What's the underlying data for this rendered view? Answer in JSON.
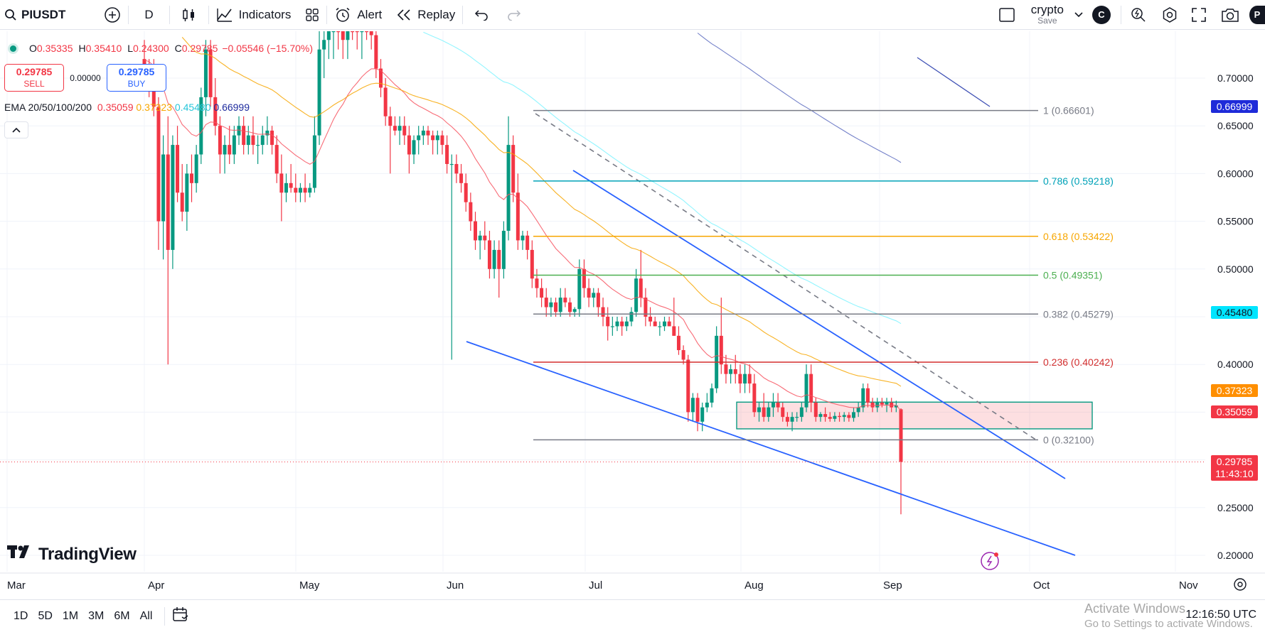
{
  "toolbar": {
    "symbol": "PIUSDT",
    "interval": "D",
    "indicators_label": "Indicators",
    "alert_label": "Alert",
    "replay_label": "Replay",
    "layout_name": "crypto",
    "layout_save": "Save",
    "account_initial": "C",
    "profile_initial": "P"
  },
  "legend": {
    "o_label": "O",
    "o_value": "0.35335",
    "h_label": "H",
    "h_value": "0.35410",
    "l_label": "L",
    "l_value": "0.24300",
    "c_label": "C",
    "c_value": "0.29785",
    "change": "−0.05546 (−15.70%)"
  },
  "trade": {
    "sell_price": "0.29785",
    "sell_label": "SELL",
    "spread": "0.00000",
    "buy_price": "0.29785",
    "buy_label": "BUY"
  },
  "ema": {
    "label": "EMA 20/50/100/200",
    "v20": "0.35059",
    "v50": "0.37323",
    "v100": "0.45480",
    "v200": "0.66999",
    "c20": "#f23645",
    "c50": "#f7a600",
    "c100": "#4dd0e1",
    "c200": "#1e2b9e"
  },
  "fib": [
    {
      "label": "1 (0.66601)",
      "price": 0.66601,
      "color": "#787b86"
    },
    {
      "label": "0.786 (0.59218)",
      "price": 0.59218,
      "color": "#00a2b8"
    },
    {
      "label": "0.618 (0.53422)",
      "price": 0.53422,
      "color": "#f7a600"
    },
    {
      "label": "0.5 (0.49351)",
      "price": 0.49351,
      "color": "#4caf50"
    },
    {
      "label": "0.382 (0.45279)",
      "price": 0.45279,
      "color": "#787b86"
    },
    {
      "label": "0.236 (0.40242)",
      "price": 0.40242,
      "color": "#d32f2f"
    },
    {
      "label": "0 (0.32100)",
      "price": 0.321,
      "color": "#787b86"
    }
  ],
  "price_axis": [
    "0.70000",
    "0.65000",
    "0.60000",
    "0.55000",
    "0.50000",
    "0.40000",
    "0.25000",
    "0.20000"
  ],
  "price_tags": {
    "ema200": "0.66999",
    "ema100": "0.45480",
    "ema50": "0.37323",
    "ema20": "0.35059",
    "last": "0.29785",
    "countdown": "11:43:10"
  },
  "time_axis": [
    "Mar",
    "Apr",
    "May",
    "Jun",
    "Jul",
    "Aug",
    "Sep",
    "Oct",
    "Nov"
  ],
  "logo_text": "TradingView",
  "ranges": [
    "1D",
    "5D",
    "1M",
    "3M",
    "6M",
    "All"
  ],
  "clock": "12:16:50 UTC",
  "watermark": {
    "line1": "Activate Windows",
    "line2": "Go to Settings to activate Windows."
  },
  "chart_data": {
    "type": "candlestick",
    "symbol": "PIUSDT",
    "interval": "D",
    "y_range": [
      0.18,
      0.735
    ],
    "candles_start": "2025-04-01",
    "candles": [
      [
        0.72,
        0.74,
        0.69,
        0.71
      ],
      [
        0.71,
        0.72,
        0.68,
        0.7
      ],
      [
        0.7,
        0.72,
        0.66,
        0.67
      ],
      [
        0.67,
        0.68,
        0.52,
        0.55
      ],
      [
        0.55,
        0.64,
        0.51,
        0.62
      ],
      [
        0.62,
        0.66,
        0.4,
        0.52
      ],
      [
        0.52,
        0.64,
        0.5,
        0.63
      ],
      [
        0.63,
        0.65,
        0.57,
        0.58
      ],
      [
        0.58,
        0.61,
        0.55,
        0.56
      ],
      [
        0.56,
        0.61,
        0.54,
        0.6
      ],
      [
        0.6,
        0.62,
        0.57,
        0.59
      ],
      [
        0.59,
        0.63,
        0.58,
        0.62
      ],
      [
        0.62,
        0.69,
        0.61,
        0.68
      ],
      [
        0.68,
        0.74,
        0.66,
        0.73
      ],
      [
        0.73,
        0.74,
        0.67,
        0.68
      ],
      [
        0.68,
        0.7,
        0.64,
        0.65
      ],
      [
        0.65,
        0.66,
        0.6,
        0.62
      ],
      [
        0.62,
        0.64,
        0.6,
        0.63
      ],
      [
        0.63,
        0.65,
        0.61,
        0.62
      ],
      [
        0.62,
        0.65,
        0.61,
        0.64
      ],
      [
        0.64,
        0.66,
        0.63,
        0.65
      ],
      [
        0.65,
        0.66,
        0.62,
        0.63
      ],
      [
        0.63,
        0.65,
        0.62,
        0.64
      ],
      [
        0.64,
        0.66,
        0.62,
        0.63
      ],
      [
        0.63,
        0.64,
        0.61,
        0.63
      ],
      [
        0.63,
        0.65,
        0.62,
        0.64
      ],
      [
        0.64,
        0.66,
        0.63,
        0.645
      ],
      [
        0.645,
        0.65,
        0.62,
        0.63
      ],
      [
        0.63,
        0.64,
        0.59,
        0.6
      ],
      [
        0.6,
        0.62,
        0.55,
        0.58
      ],
      [
        0.58,
        0.6,
        0.57,
        0.59
      ],
      [
        0.59,
        0.61,
        0.58,
        0.585
      ],
      [
        0.585,
        0.6,
        0.57,
        0.58
      ],
      [
        0.58,
        0.59,
        0.57,
        0.585
      ],
      [
        0.585,
        0.6,
        0.57,
        0.58
      ],
      [
        0.58,
        0.59,
        0.575,
        0.585
      ],
      [
        0.585,
        0.66,
        0.58,
        0.64
      ],
      [
        0.64,
        0.75,
        0.63,
        0.73
      ],
      [
        0.73,
        0.76,
        0.7,
        0.74
      ],
      [
        0.74,
        0.78,
        0.72,
        0.75
      ],
      [
        0.75,
        0.78,
        0.72,
        0.76
      ],
      [
        0.76,
        0.79,
        0.73,
        0.75
      ],
      [
        0.75,
        0.77,
        0.72,
        0.74
      ],
      [
        0.74,
        0.78,
        0.72,
        0.77
      ],
      [
        0.77,
        0.79,
        0.74,
        0.76
      ],
      [
        0.76,
        0.78,
        0.73,
        0.75
      ],
      [
        0.75,
        0.77,
        0.72,
        0.76
      ],
      [
        0.76,
        0.78,
        0.74,
        0.75
      ],
      [
        0.75,
        0.76,
        0.73,
        0.745
      ],
      [
        0.745,
        0.75,
        0.7,
        0.71
      ],
      [
        0.71,
        0.72,
        0.68,
        0.69
      ],
      [
        0.69,
        0.7,
        0.65,
        0.66
      ],
      [
        0.66,
        0.67,
        0.6,
        0.65
      ],
      [
        0.65,
        0.66,
        0.64,
        0.645
      ],
      [
        0.645,
        0.66,
        0.63,
        0.65
      ],
      [
        0.65,
        0.66,
        0.63,
        0.64
      ],
      [
        0.64,
        0.65,
        0.6,
        0.62
      ],
      [
        0.62,
        0.64,
        0.61,
        0.635
      ],
      [
        0.635,
        0.65,
        0.62,
        0.64
      ],
      [
        0.64,
        0.65,
        0.63,
        0.645
      ],
      [
        0.645,
        0.65,
        0.63,
        0.64
      ],
      [
        0.64,
        0.645,
        0.62,
        0.635
      ],
      [
        0.635,
        0.645,
        0.62,
        0.64
      ],
      [
        0.64,
        0.645,
        0.62,
        0.63
      ],
      [
        0.63,
        0.64,
        0.6,
        0.61
      ],
      [
        0.61,
        0.62,
        0.405,
        0.61
      ],
      [
        0.61,
        0.62,
        0.59,
        0.6
      ],
      [
        0.6,
        0.61,
        0.58,
        0.59
      ],
      [
        0.59,
        0.6,
        0.56,
        0.57
      ],
      [
        0.57,
        0.58,
        0.54,
        0.55
      ],
      [
        0.55,
        0.56,
        0.52,
        0.53
      ],
      [
        0.53,
        0.54,
        0.51,
        0.535
      ],
      [
        0.535,
        0.55,
        0.52,
        0.53
      ],
      [
        0.53,
        0.54,
        0.49,
        0.5
      ],
      [
        0.5,
        0.53,
        0.49,
        0.52
      ],
      [
        0.52,
        0.53,
        0.47,
        0.5
      ],
      [
        0.5,
        0.55,
        0.49,
        0.54
      ],
      [
        0.54,
        0.66,
        0.53,
        0.63
      ],
      [
        0.63,
        0.64,
        0.57,
        0.58
      ],
      [
        0.58,
        0.6,
        0.52,
        0.53
      ],
      [
        0.53,
        0.54,
        0.52,
        0.535
      ],
      [
        0.535,
        0.54,
        0.51,
        0.52
      ],
      [
        0.52,
        0.53,
        0.48,
        0.49
      ],
      [
        0.49,
        0.5,
        0.47,
        0.48
      ],
      [
        0.48,
        0.49,
        0.46,
        0.47
      ],
      [
        0.47,
        0.48,
        0.45,
        0.46
      ],
      [
        0.46,
        0.47,
        0.45,
        0.465
      ],
      [
        0.465,
        0.47,
        0.45,
        0.455
      ],
      [
        0.455,
        0.48,
        0.45,
        0.47
      ],
      [
        0.47,
        0.48,
        0.46,
        0.465
      ],
      [
        0.465,
        0.47,
        0.45,
        0.455
      ],
      [
        0.455,
        0.46,
        0.45,
        0.458
      ],
      [
        0.458,
        0.51,
        0.45,
        0.5
      ],
      [
        0.5,
        0.51,
        0.47,
        0.48
      ],
      [
        0.48,
        0.49,
        0.46,
        0.47
      ],
      [
        0.47,
        0.48,
        0.46,
        0.475
      ],
      [
        0.475,
        0.48,
        0.45,
        0.46
      ],
      [
        0.46,
        0.47,
        0.44,
        0.45
      ],
      [
        0.45,
        0.46,
        0.425,
        0.44
      ],
      [
        0.44,
        0.45,
        0.43,
        0.44
      ],
      [
        0.44,
        0.45,
        0.435,
        0.445
      ],
      [
        0.445,
        0.45,
        0.43,
        0.44
      ],
      [
        0.44,
        0.45,
        0.435,
        0.445
      ],
      [
        0.445,
        0.46,
        0.44,
        0.455
      ],
      [
        0.455,
        0.5,
        0.45,
        0.49
      ],
      [
        0.49,
        0.52,
        0.46,
        0.47
      ],
      [
        0.47,
        0.48,
        0.44,
        0.45
      ],
      [
        0.45,
        0.46,
        0.44,
        0.445
      ],
      [
        0.445,
        0.45,
        0.44,
        0.44
      ],
      [
        0.44,
        0.445,
        0.43,
        0.44
      ],
      [
        0.44,
        0.45,
        0.435,
        0.445
      ],
      [
        0.445,
        0.45,
        0.44,
        0.44
      ],
      [
        0.44,
        0.47,
        0.43,
        0.43
      ],
      [
        0.43,
        0.44,
        0.41,
        0.415
      ],
      [
        0.415,
        0.42,
        0.4,
        0.405
      ],
      [
        0.405,
        0.41,
        0.34,
        0.35
      ],
      [
        0.35,
        0.37,
        0.34,
        0.365
      ],
      [
        0.365,
        0.37,
        0.33,
        0.34
      ],
      [
        0.34,
        0.36,
        0.33,
        0.355
      ],
      [
        0.355,
        0.37,
        0.35,
        0.36
      ],
      [
        0.36,
        0.38,
        0.355,
        0.375
      ],
      [
        0.375,
        0.44,
        0.37,
        0.43
      ],
      [
        0.43,
        0.47,
        0.39,
        0.4
      ],
      [
        0.4,
        0.41,
        0.38,
        0.39
      ],
      [
        0.39,
        0.4,
        0.38,
        0.395
      ],
      [
        0.395,
        0.41,
        0.38,
        0.39
      ],
      [
        0.39,
        0.4,
        0.37,
        0.38
      ],
      [
        0.38,
        0.4,
        0.37,
        0.39
      ],
      [
        0.39,
        0.4,
        0.37,
        0.38
      ],
      [
        0.38,
        0.39,
        0.345,
        0.35
      ],
      [
        0.35,
        0.36,
        0.34,
        0.355
      ],
      [
        0.355,
        0.37,
        0.34,
        0.345
      ],
      [
        0.345,
        0.36,
        0.34,
        0.355
      ],
      [
        0.355,
        0.37,
        0.345,
        0.36
      ],
      [
        0.36,
        0.37,
        0.35,
        0.355
      ],
      [
        0.355,
        0.36,
        0.34,
        0.345
      ],
      [
        0.345,
        0.35,
        0.335,
        0.34
      ],
      [
        0.34,
        0.35,
        0.33,
        0.345
      ],
      [
        0.345,
        0.35,
        0.34,
        0.345
      ],
      [
        0.345,
        0.36,
        0.34,
        0.355
      ],
      [
        0.355,
        0.4,
        0.35,
        0.39
      ],
      [
        0.39,
        0.4,
        0.35,
        0.36
      ],
      [
        0.36,
        0.365,
        0.34,
        0.345
      ],
      [
        0.345,
        0.35,
        0.34,
        0.348
      ],
      [
        0.348,
        0.355,
        0.34,
        0.345
      ],
      [
        0.345,
        0.35,
        0.34,
        0.343
      ],
      [
        0.343,
        0.35,
        0.34,
        0.346
      ],
      [
        0.346,
        0.35,
        0.34,
        0.345
      ],
      [
        0.345,
        0.35,
        0.34,
        0.347
      ],
      [
        0.347,
        0.35,
        0.34,
        0.344
      ],
      [
        0.344,
        0.355,
        0.34,
        0.35
      ],
      [
        0.35,
        0.36,
        0.345,
        0.355
      ],
      [
        0.355,
        0.38,
        0.35,
        0.375
      ],
      [
        0.375,
        0.38,
        0.355,
        0.36
      ],
      [
        0.36,
        0.365,
        0.35,
        0.355
      ],
      [
        0.355,
        0.365,
        0.35,
        0.36
      ],
      [
        0.36,
        0.365,
        0.355,
        0.358
      ],
      [
        0.358,
        0.365,
        0.35,
        0.36
      ],
      [
        0.36,
        0.365,
        0.35,
        0.355
      ],
      [
        0.355,
        0.362,
        0.35,
        0.357
      ],
      [
        0.353,
        0.354,
        0.243,
        0.298
      ]
    ]
  }
}
